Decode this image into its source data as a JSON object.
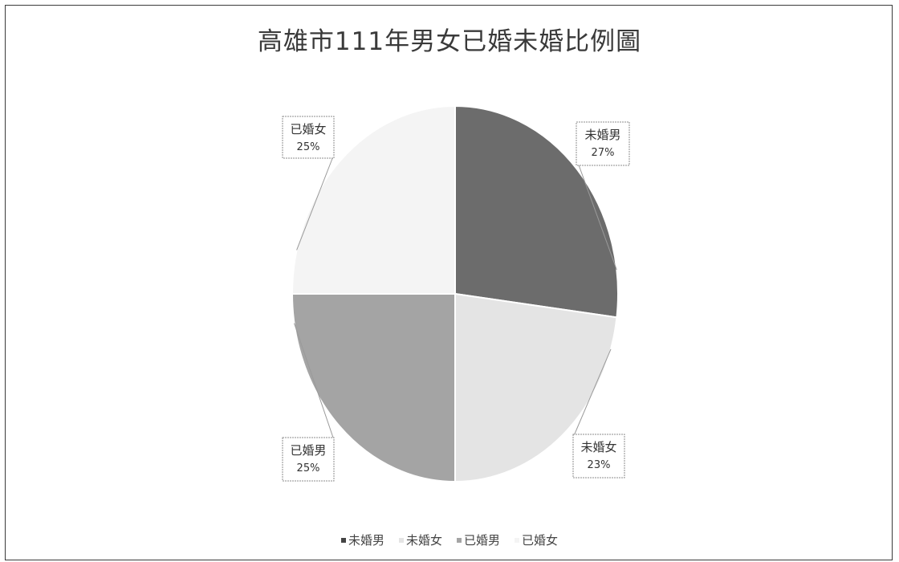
{
  "chart_data": {
    "type": "pie",
    "title": "高雄市111年男女已婚未婚比例圖",
    "categories": [
      "未婚男",
      "未婚女",
      "已婚男",
      "已婚女"
    ],
    "values": [
      27,
      23,
      25,
      25
    ],
    "labels": [
      "27%",
      "23%",
      "25%",
      "25%"
    ],
    "colors": [
      "#6c6c6c",
      "#e4e4e4",
      "#a4a4a4",
      "#f4f4f4"
    ],
    "legend": "bottom",
    "start_angle_deg": 0,
    "direction": "clockwise"
  }
}
